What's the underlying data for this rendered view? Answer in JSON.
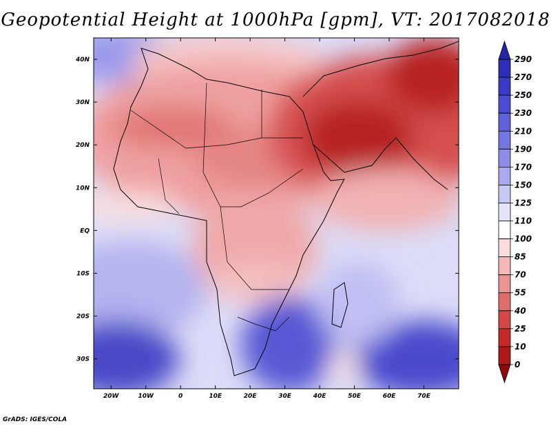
{
  "title": "Geopotential Height at 1000hPa [gpm], VT: 2017082018",
  "credit": "GrADS: IGES/COLA",
  "map": {
    "lon_range": [
      -25,
      80
    ],
    "lat_range": [
      -37,
      45
    ],
    "lat_ticks": [
      "40N",
      "30N",
      "20N",
      "10N",
      "EQ",
      "10S",
      "20S",
      "30S"
    ],
    "lon_ticks": [
      "20W",
      "10W",
      "0",
      "10E",
      "20E",
      "30E",
      "40E",
      "50E",
      "60E",
      "70E"
    ]
  },
  "colorbar": {
    "labels": [
      "290",
      "270",
      "250",
      "230",
      "210",
      "190",
      "170",
      "150",
      "125",
      "110",
      "100",
      "85",
      "70",
      "55",
      "40",
      "25",
      "10",
      "0"
    ],
    "colors": [
      "#2525a8",
      "#2e2eb8",
      "#3a3ac4",
      "#4c4cd0",
      "#6060da",
      "#7676e2",
      "#8e8ee8",
      "#aaaaee",
      "#c8c8f4",
      "#e4e4fa",
      "#ffffff",
      "#fbdcdc",
      "#f4b9b9",
      "#eb9494",
      "#e06d6d",
      "#d44848",
      "#c42a2a",
      "#ad1818",
      "#8e0a0a"
    ]
  }
}
